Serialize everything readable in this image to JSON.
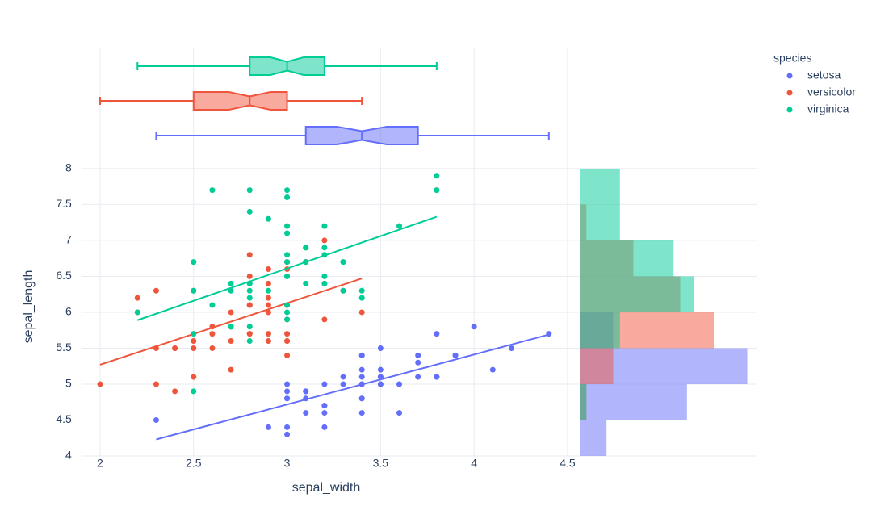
{
  "chart_data": {
    "type": "scatter",
    "xlabel": "sepal_width",
    "ylabel": "sepal_length",
    "legend_title": "species",
    "legend_position": "right",
    "xlim": [
      1.9,
      4.52
    ],
    "xticks": [
      2,
      2.5,
      3,
      3.5,
      4,
      4.5
    ],
    "ylim": [
      4,
      8.1
    ],
    "yticks": [
      4,
      4.5,
      5,
      5.5,
      6,
      6.5,
      7,
      7.5,
      8
    ],
    "grid": true,
    "hist_bins": [
      4,
      4.5,
      5,
      5.5,
      6,
      6.5,
      7,
      7.5,
      8
    ],
    "hist_xlim": [
      0,
      26.5
    ],
    "series": [
      {
        "name": "setosa",
        "color": "#636efa",
        "x": [
          3.5,
          3.0,
          3.2,
          3.1,
          3.6,
          3.9,
          3.4,
          3.4,
          2.9,
          3.1,
          3.7,
          3.4,
          3.0,
          3.0,
          4.0,
          4.4,
          3.9,
          3.5,
          3.8,
          3.8,
          3.4,
          3.7,
          3.6,
          3.3,
          3.4,
          3.0,
          3.4,
          3.5,
          3.4,
          3.2,
          3.1,
          3.4,
          4.1,
          4.2,
          3.1,
          3.2,
          3.5,
          3.1,
          3.0,
          3.4,
          3.5,
          2.3,
          3.2,
          3.5,
          3.8,
          3.0,
          3.8,
          3.2,
          3.7,
          3.3
        ],
        "y": [
          5.1,
          4.9,
          4.7,
          4.6,
          5.0,
          5.4,
          4.6,
          5.0,
          4.4,
          4.9,
          5.4,
          4.8,
          4.8,
          4.3,
          5.8,
          5.7,
          5.4,
          5.1,
          5.7,
          5.1,
          5.4,
          5.1,
          4.6,
          5.1,
          4.8,
          5.0,
          5.0,
          5.2,
          5.2,
          4.7,
          4.8,
          5.4,
          5.2,
          5.5,
          4.9,
          5.0,
          5.5,
          4.9,
          4.4,
          5.1,
          5.0,
          4.5,
          4.4,
          5.0,
          5.1,
          4.8,
          5.1,
          4.6,
          5.3,
          5.0
        ],
        "trendline": {
          "x": [
            2.3,
            4.4
          ],
          "y": [
            4.23,
            5.69
          ]
        },
        "box": {
          "min": 2.3,
          "q1": 3.1,
          "median": 3.4,
          "q3": 3.7,
          "max": 4.4
        },
        "hist_counts": [
          4,
          16,
          25,
          5,
          0,
          0,
          0,
          0
        ]
      },
      {
        "name": "versicolor",
        "color": "#EF553B",
        "x": [
          3.2,
          3.2,
          3.1,
          2.3,
          2.8,
          2.8,
          3.3,
          2.4,
          2.9,
          2.7,
          2.0,
          3.0,
          2.2,
          2.9,
          2.9,
          3.1,
          3.0,
          2.7,
          2.2,
          2.5,
          3.2,
          2.8,
          2.5,
          2.8,
          2.9,
          3.0,
          2.8,
          3.0,
          2.9,
          2.6,
          2.4,
          2.4,
          2.7,
          2.7,
          3.0,
          3.4,
          3.1,
          2.3,
          3.0,
          2.5,
          2.6,
          3.0,
          2.6,
          2.3,
          2.7,
          3.0,
          2.9,
          2.9,
          2.5,
          2.8
        ],
        "y": [
          7.0,
          6.4,
          6.9,
          5.5,
          6.5,
          5.7,
          6.3,
          4.9,
          6.6,
          5.2,
          5.0,
          5.9,
          6.0,
          6.1,
          5.6,
          6.7,
          5.6,
          5.8,
          6.2,
          5.6,
          5.9,
          6.1,
          6.3,
          6.1,
          6.4,
          6.6,
          6.8,
          6.7,
          6.0,
          5.7,
          5.5,
          5.5,
          5.8,
          6.0,
          5.4,
          6.0,
          6.7,
          6.3,
          5.6,
          5.5,
          5.5,
          6.1,
          5.8,
          5.0,
          5.6,
          5.7,
          5.7,
          6.2,
          5.1,
          5.7
        ],
        "trendline": {
          "x": [
            2.0,
            3.4
          ],
          "y": [
            5.27,
            6.47
          ]
        },
        "box": {
          "min": 2.0,
          "q1": 2.5,
          "median": 2.8,
          "q3": 3.0,
          "max": 3.4
        },
        "hist_counts": [
          0,
          1,
          5,
          20,
          15,
          8,
          1,
          0
        ]
      },
      {
        "name": "virginica",
        "color": "#00cc96",
        "x": [
          3.3,
          2.7,
          3.0,
          2.9,
          3.0,
          3.0,
          2.5,
          2.9,
          2.5,
          3.6,
          3.2,
          2.7,
          3.0,
          2.5,
          2.8,
          3.2,
          3.0,
          3.8,
          2.6,
          2.2,
          3.2,
          2.8,
          2.8,
          2.7,
          3.3,
          3.2,
          2.8,
          3.0,
          2.8,
          3.0,
          2.8,
          3.8,
          2.8,
          2.8,
          2.6,
          3.0,
          3.4,
          3.1,
          3.0,
          3.1,
          3.1,
          3.1,
          2.7,
          3.2,
          3.3,
          3.0,
          2.5,
          3.0,
          3.4,
          3.0
        ],
        "y": [
          6.3,
          5.8,
          7.1,
          6.3,
          6.5,
          7.6,
          4.9,
          7.3,
          6.7,
          7.2,
          6.5,
          6.4,
          6.8,
          5.7,
          5.8,
          6.4,
          6.5,
          7.7,
          7.7,
          6.0,
          6.9,
          5.6,
          7.7,
          6.3,
          6.7,
          7.2,
          6.2,
          6.1,
          6.4,
          7.2,
          7.4,
          7.9,
          6.4,
          6.3,
          6.1,
          7.7,
          6.3,
          6.4,
          6.0,
          6.9,
          6.7,
          6.9,
          5.8,
          6.8,
          6.7,
          6.7,
          6.3,
          6.5,
          6.2,
          5.9
        ],
        "trendline": {
          "x": [
            2.2,
            3.8
          ],
          "y": [
            5.89,
            7.33
          ]
        },
        "box": {
          "min": 2.2,
          "q1": 2.8,
          "median": 3.0,
          "q3": 3.2,
          "max": 3.8
        },
        "hist_counts": [
          0,
          1,
          0,
          6,
          17,
          14,
          6,
          6
        ]
      }
    ]
  }
}
